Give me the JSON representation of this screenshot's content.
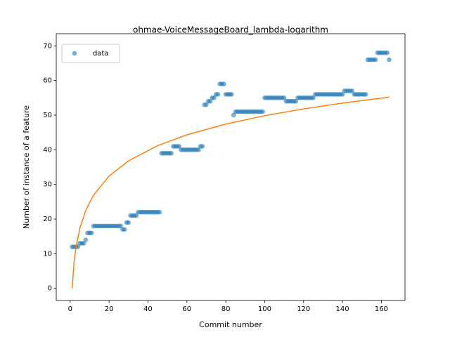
{
  "chart_data": {
    "type": "scatter",
    "title": "ohmae-VoiceMessageBoard_lambda-logarithm",
    "x_label": "Commit number",
    "y_label": "Number of instance of a feature",
    "xlim": [
      -7.15,
      172.15
    ],
    "ylim": [
      -3.5,
      73.5
    ],
    "xticks": [
      0,
      20,
      40,
      60,
      80,
      100,
      120,
      140,
      160
    ],
    "yticks": [
      0,
      10,
      20,
      30,
      40,
      50,
      60,
      70
    ],
    "legend": "upper left",
    "series": [
      {
        "name": "data",
        "type": "scatter",
        "color": "#1f77b4",
        "x": [
          1,
          2,
          3,
          4,
          5,
          6,
          7,
          8,
          9,
          10,
          11,
          12,
          13,
          14,
          15,
          16,
          17,
          18,
          19,
          20,
          21,
          22,
          23,
          24,
          25,
          26,
          27,
          28,
          29,
          30,
          31,
          32,
          33,
          34,
          35,
          36,
          37,
          38,
          39,
          40,
          41,
          42,
          43,
          44,
          45,
          46,
          47,
          48,
          49,
          50,
          51,
          52,
          53,
          54,
          55,
          56,
          57,
          58,
          59,
          60,
          61,
          62,
          63,
          64,
          65,
          66,
          67,
          68,
          69,
          70,
          71,
          72,
          73,
          74,
          75,
          76,
          77,
          78,
          79,
          80,
          81,
          82,
          83,
          84,
          85,
          86,
          87,
          88,
          89,
          90,
          91,
          92,
          93,
          94,
          95,
          96,
          97,
          98,
          99,
          100,
          101,
          102,
          103,
          104,
          105,
          106,
          107,
          108,
          109,
          110,
          111,
          112,
          113,
          114,
          115,
          116,
          117,
          118,
          119,
          120,
          121,
          122,
          123,
          124,
          125,
          126,
          127,
          128,
          129,
          130,
          131,
          132,
          133,
          134,
          135,
          136,
          137,
          138,
          139,
          140,
          141,
          142,
          143,
          144,
          145,
          146,
          147,
          148,
          149,
          150,
          151,
          152,
          153,
          154,
          155,
          156,
          157,
          158,
          159,
          160,
          161,
          162,
          163,
          164
        ],
        "values": [
          12,
          12,
          12,
          12,
          13,
          13,
          13,
          14,
          16,
          16,
          16,
          18,
          18,
          18,
          18,
          18,
          18,
          18,
          18,
          18,
          18,
          18,
          18,
          18,
          18,
          18,
          17,
          17,
          19,
          19,
          21,
          21,
          21,
          21,
          22,
          22,
          22,
          22,
          22,
          22,
          22,
          22,
          22,
          22,
          22,
          22,
          39,
          39,
          39,
          39,
          39,
          39,
          41,
          41,
          41,
          41,
          40,
          40,
          40,
          40,
          40,
          40,
          40,
          40,
          40,
          40,
          41,
          41,
          53,
          53,
          54,
          54,
          55,
          55,
          56,
          56,
          59,
          59,
          59,
          56,
          56,
          56,
          56,
          50,
          51,
          51,
          51,
          51,
          51,
          51,
          51,
          51,
          51,
          51,
          51,
          51,
          51,
          51,
          51,
          55,
          55,
          55,
          55,
          55,
          55,
          55,
          55,
          55,
          55,
          55,
          54,
          54,
          54,
          54,
          54,
          54,
          55,
          55,
          55,
          55,
          55,
          55,
          55,
          55,
          55,
          56,
          56,
          56,
          56,
          56,
          56,
          56,
          56,
          56,
          56,
          56,
          56,
          56,
          56,
          56,
          57,
          57,
          57,
          57,
          57,
          56,
          56,
          56,
          56,
          56,
          56,
          56,
          66,
          66,
          66,
          66,
          66,
          68,
          68,
          68,
          68,
          68,
          68,
          66
        ]
      },
      {
        "type": "line",
        "color": "#ff7f0e",
        "x": [
          1,
          2,
          3,
          5,
          8,
          12,
          20,
          30,
          45,
          60,
          80,
          100,
          120,
          140,
          164
        ],
        "values": [
          0,
          7.5,
          11.89,
          17.41,
          22.5,
          26.89,
          32.41,
          36.8,
          41.19,
          44.3,
          47.41,
          49.83,
          51.8,
          53.47,
          55.18
        ]
      }
    ]
  }
}
